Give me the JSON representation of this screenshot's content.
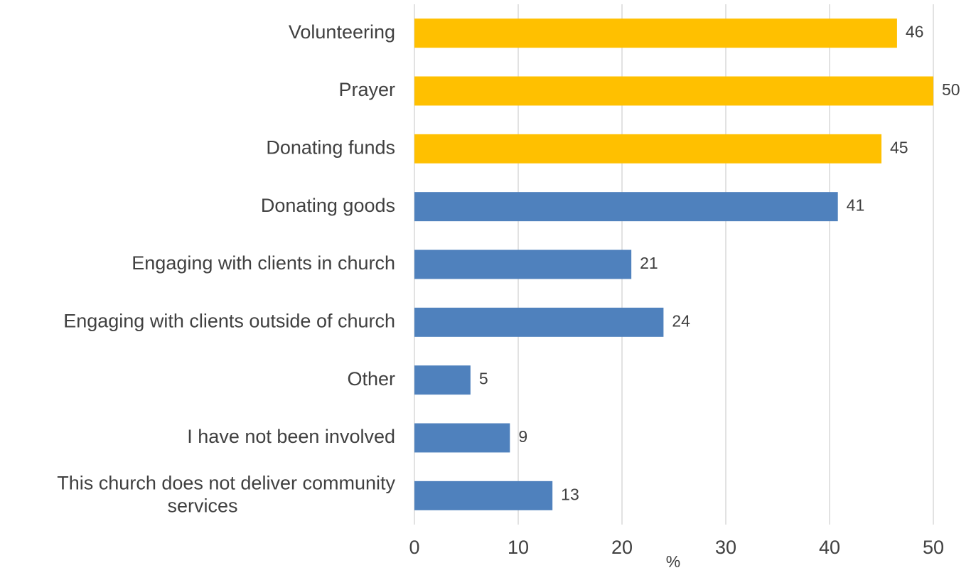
{
  "chart_data": {
    "type": "bar",
    "orientation": "horizontal",
    "categories": [
      "Volunteering",
      "Prayer",
      "Donating funds",
      "Donating goods",
      "Engaging with clients in church",
      "Engaging with clients outside of church",
      "Other",
      "I have not been involved",
      "This church does not deliver community services"
    ],
    "category_lines": [
      [
        "Volunteering"
      ],
      [
        "Prayer"
      ],
      [
        "Donating funds"
      ],
      [
        "Donating goods"
      ],
      [
        "Engaging with clients in church"
      ],
      [
        "Engaging with clients outside of church"
      ],
      [
        "Other"
      ],
      [
        "I have not been involved"
      ],
      [
        "This church does not deliver community",
        "services"
      ]
    ],
    "values": [
      46.5,
      50,
      45,
      40.8,
      20.9,
      24,
      5.4,
      9.2,
      13.3
    ],
    "value_labels": [
      "46",
      "50",
      "45",
      "41",
      "21",
      "24",
      "5",
      "9",
      "13"
    ],
    "bar_colors": [
      "#FFC000",
      "#FFC000",
      "#FFC000",
      "#4F81BD",
      "#4F81BD",
      "#4F81BD",
      "#4F81BD",
      "#4F81BD",
      "#4F81BD"
    ],
    "xlabel": "%",
    "xlim": [
      0,
      50
    ],
    "xticks": [
      0,
      10,
      20,
      30,
      40,
      50
    ],
    "xtick_labels": [
      "0",
      "10",
      "20",
      "30",
      "40",
      "50"
    ],
    "grid": true,
    "colors": {
      "highlight": "#FFC000",
      "default": "#4F81BD",
      "gridline": "#D9D9D9",
      "text": "#404040"
    }
  }
}
